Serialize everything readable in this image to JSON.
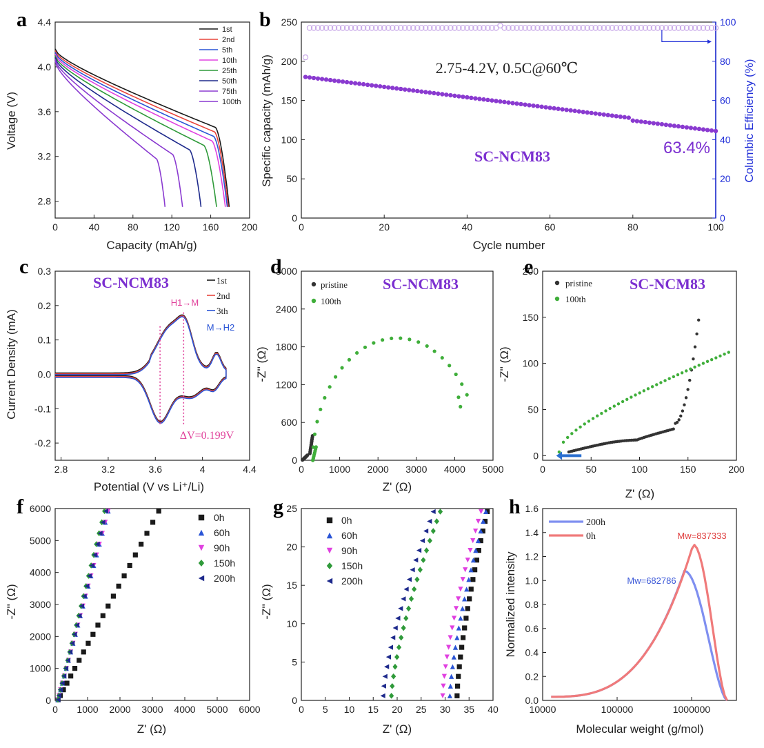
{
  "figure": {
    "panels": [
      "a",
      "b",
      "c",
      "d",
      "e",
      "f",
      "g",
      "h"
    ]
  },
  "colors": {
    "axis": "#222222",
    "black": "#1a1a1a",
    "red": "#e8453c",
    "blue": "#2a55d6",
    "magenta": "#e040e0",
    "green": "#2f9a3a",
    "navy": "#1e2a8c",
    "purple": "#8a3ad0",
    "lavender": "#c8a8e8",
    "purple_label": "#7b2fd0",
    "eis_black": "#333333",
    "eis_green": "#3fae3a",
    "pink": "#e0409a",
    "gpc_blue": "#7f8ff0",
    "gpc_red": "#f07a7a",
    "blue_axis": "#2230d8"
  },
  "chart_data": [
    {
      "panel": "a",
      "type": "line",
      "xlabel": "Capacity (mAh/g)",
      "ylabel": "Voltage (V)",
      "xlim": [
        0,
        200
      ],
      "ylim": [
        2.65,
        4.4
      ],
      "xticks": [
        0,
        40,
        80,
        120,
        160,
        200
      ],
      "yticks": [
        2.8,
        3.2,
        3.6,
        4.0,
        4.4
      ],
      "legend_position": "top-right",
      "series": [
        {
          "name": "1st",
          "color": "black",
          "end_cap": 179
        },
        {
          "name": "2nd",
          "color": "red",
          "end_cap": 178
        },
        {
          "name": "5th",
          "color": "blue",
          "end_cap": 177
        },
        {
          "name": "10th",
          "color": "magenta",
          "end_cap": 175
        },
        {
          "name": "25th",
          "color": "green",
          "end_cap": 166
        },
        {
          "name": "50th",
          "color": "navy",
          "end_cap": 150
        },
        {
          "name": "75th",
          "color": "purple",
          "end_cap": 131
        },
        {
          "name": "100th",
          "color": "purple",
          "end_cap": 113
        }
      ]
    },
    {
      "panel": "b",
      "type": "scatter",
      "xlabel": "Cycle number",
      "ylabel": "Specific capacity (mAh/g)",
      "y2label": "Columbic Efficiency (%)",
      "xlim": [
        0,
        100
      ],
      "ylim": [
        0,
        250
      ],
      "y2lim": [
        0,
        100
      ],
      "xticks": [
        0,
        20,
        40,
        60,
        80,
        100
      ],
      "yticks": [
        0,
        50,
        100,
        150,
        200,
        250
      ],
      "y2ticks": [
        0,
        20,
        40,
        60,
        80,
        100
      ],
      "annotation": "2.75-4.2V, 0.5C@60℃",
      "sample_label": "SC-NCM83",
      "retention_label": "63.4%",
      "capacity_start": 180,
      "capacity_end": 114,
      "ce_value": 97,
      "ce_first": 82
    },
    {
      "panel": "c",
      "type": "line",
      "xlabel": "Potential (V vs Li⁺/Li)",
      "ylabel": "Current Density (mA)",
      "xlim": [
        2.75,
        4.4
      ],
      "ylim": [
        -0.25,
        0.3
      ],
      "xticks": [
        2.8,
        3.2,
        3.6,
        4.0,
        4.4
      ],
      "yticks": [
        -0.2,
        -0.1,
        0.0,
        0.1,
        0.2,
        0.3
      ],
      "sample_label": "SC-NCM83",
      "peak_label_1": "H1→M",
      "peak_label_2": "M→H2",
      "delta_label": "ΔV=0.199V",
      "anodic_peak_v": 3.84,
      "cathodic_peak_v": 3.64,
      "series": [
        {
          "name": "1st",
          "color": "black"
        },
        {
          "name": "2nd",
          "color": "red"
        },
        {
          "name": "3th",
          "color": "blue"
        }
      ]
    },
    {
      "panel": "d",
      "type": "scatter",
      "xlabel": "Z' (Ω)",
      "ylabel": "-Z'' (Ω)",
      "xlim": [
        0,
        5000
      ],
      "ylim": [
        0,
        3000
      ],
      "xticks": [
        0,
        1000,
        2000,
        3000,
        4000,
        5000
      ],
      "yticks": [
        0,
        600,
        1200,
        1800,
        2400,
        3000
      ],
      "sample_label": "SC-NCM83",
      "series": [
        {
          "name": "pristine",
          "color": "eis_black"
        },
        {
          "name": "100th",
          "color": "eis_green",
          "arc_start": 300,
          "arc_peak": [
            2500,
            1900
          ],
          "arc_end": [
            4150,
            850
          ]
        }
      ]
    },
    {
      "panel": "e",
      "type": "scatter",
      "xlabel": "Z' (Ω)",
      "ylabel": "-Z'' (Ω)",
      "xlim": [
        0,
        200
      ],
      "ylim": [
        -5,
        200
      ],
      "xticks": [
        0,
        50,
        100,
        150,
        200
      ],
      "yticks": [
        0,
        50,
        100,
        150,
        200
      ],
      "sample_label": "SC-NCM83",
      "series": [
        {
          "name": "pristine",
          "color": "eis_black"
        },
        {
          "name": "100th",
          "color": "eis_green"
        }
      ]
    },
    {
      "panel": "f",
      "type": "scatter",
      "xlabel": "Z' (Ω)",
      "ylabel": "-Z'' (Ω)",
      "xlim": [
        0,
        6000
      ],
      "ylim": [
        0,
        6000
      ],
      "xticks": [
        0,
        1000,
        2000,
        3000,
        4000,
        5000,
        6000
      ],
      "yticks": [
        0,
        1000,
        2000,
        3000,
        4000,
        5000,
        6000
      ],
      "series": [
        {
          "name": "0h",
          "color": "black",
          "marker": "square",
          "slope": 1.9
        },
        {
          "name": "60h",
          "color": "blue",
          "marker": "triangle-up",
          "slope": 3.8
        },
        {
          "name": "90h",
          "color": "magenta",
          "marker": "triangle-down",
          "slope": 3.8
        },
        {
          "name": "150h",
          "color": "green",
          "marker": "diamond",
          "slope": 4.1
        },
        {
          "name": "200h",
          "color": "navy",
          "marker": "triangle-left",
          "slope": 4.0
        }
      ]
    },
    {
      "panel": "g",
      "type": "scatter",
      "xlabel": "Z' (Ω)",
      "ylabel": "-Z'' (Ω)",
      "xlim": [
        0,
        40
      ],
      "ylim": [
        0,
        25
      ],
      "xticks": [
        0,
        5,
        10,
        15,
        20,
        25,
        30,
        35,
        40
      ],
      "yticks": [
        0,
        5,
        10,
        15,
        20,
        25
      ],
      "series": [
        {
          "name": "0h",
          "color": "black",
          "marker": "square",
          "x0": 32.5,
          "x1": 38.8
        },
        {
          "name": "60h",
          "color": "blue",
          "marker": "triangle-up",
          "x0": 31.0,
          "x1": 38.5
        },
        {
          "name": "90h",
          "color": "magenta",
          "marker": "triangle-down",
          "x0": 29.5,
          "x1": 37.5
        },
        {
          "name": "150h",
          "color": "green",
          "marker": "diamond",
          "x0": 18.8,
          "x1": 29.0
        },
        {
          "name": "200h",
          "color": "navy",
          "marker": "triangle-left",
          "x0": 17.0,
          "x1": 27.5
        }
      ]
    },
    {
      "panel": "h",
      "type": "line",
      "xlabel": "Molecular  weight (g/mol)",
      "ylabel": "Normalized intensity",
      "xscale": "log",
      "xlim": [
        10000,
        4000000
      ],
      "ylim": [
        0,
        1.6
      ],
      "xtick_labels": [
        "10000",
        "100000",
        "1000000"
      ],
      "yticks": [
        0.0,
        0.2,
        0.4,
        0.6,
        0.8,
        1.0,
        1.2,
        1.4,
        1.6
      ],
      "annotations": [
        "Mw=682786",
        "Mw=837333"
      ],
      "series": [
        {
          "name": "200h",
          "color": "gpc_blue",
          "peak_x": 800000,
          "peak_y": 1.08
        },
        {
          "name": "0h",
          "color": "gpc_red",
          "peak_x": 1050000,
          "peak_y": 1.3
        }
      ]
    }
  ]
}
